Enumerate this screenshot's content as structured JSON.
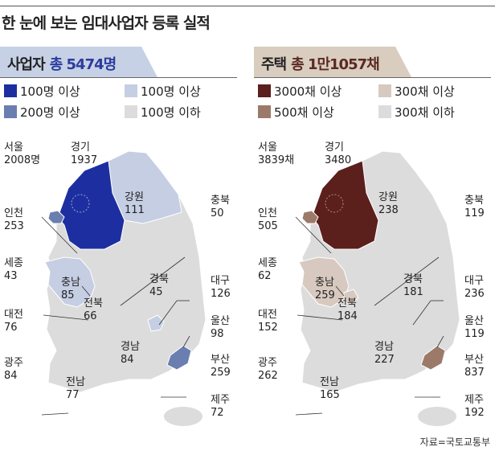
{
  "title": "한 눈에 보는 임대사업자 등록 실적",
  "source": "자료=국토교통부",
  "colors": {
    "left_header_bg": "#c7d1e5",
    "left_header_accent": "#2b3c9e",
    "right_header_bg": "#d9cdbf",
    "right_header_accent": "#5a2a22",
    "left_dark": "#1d2fa0",
    "left_mid": "#6a7fb0",
    "left_light": "#c5cee3",
    "base_gray": "#dcdcdc",
    "right_dark": "#5b1f1c",
    "right_mid": "#9c7a69",
    "right_light": "#d8c9c0"
  },
  "left": {
    "label": "사업자",
    "total": "총 5474명",
    "legend": [
      {
        "text": "100명 이상",
        "tier": "dark"
      },
      {
        "text": "100명 이상",
        "tier": "light"
      },
      {
        "text": "200명 이상",
        "tier": "mid"
      },
      {
        "text": "100명 이하",
        "tier": "gray"
      }
    ],
    "regions": [
      {
        "name": "서울",
        "value": "2008명"
      },
      {
        "name": "경기",
        "value": "1937"
      },
      {
        "name": "강원",
        "value": "111"
      },
      {
        "name": "충북",
        "value": "50"
      },
      {
        "name": "인천",
        "value": "253"
      },
      {
        "name": "세종",
        "value": "43"
      },
      {
        "name": "충남",
        "value": "85"
      },
      {
        "name": "경북",
        "value": "45"
      },
      {
        "name": "대구",
        "value": "126"
      },
      {
        "name": "대전",
        "value": "76"
      },
      {
        "name": "전북",
        "value": "66"
      },
      {
        "name": "울산",
        "value": "98"
      },
      {
        "name": "광주",
        "value": "84"
      },
      {
        "name": "경남",
        "value": "84"
      },
      {
        "name": "부산",
        "value": "259"
      },
      {
        "name": "전남",
        "value": "77"
      },
      {
        "name": "제주",
        "value": "72"
      }
    ]
  },
  "right": {
    "label": "주택",
    "total": "총 1만1057채",
    "legend": [
      {
        "text": "3000채 이상",
        "tier": "dark"
      },
      {
        "text": "300채 이상",
        "tier": "light"
      },
      {
        "text": "500채 이상",
        "tier": "mid"
      },
      {
        "text": "300채 이하",
        "tier": "gray"
      }
    ],
    "regions": [
      {
        "name": "서울",
        "value": "3839채"
      },
      {
        "name": "경기",
        "value": "3480"
      },
      {
        "name": "강원",
        "value": "238"
      },
      {
        "name": "충북",
        "value": "119"
      },
      {
        "name": "인천",
        "value": "505"
      },
      {
        "name": "세종",
        "value": "62"
      },
      {
        "name": "충남",
        "value": "259"
      },
      {
        "name": "경북",
        "value": "181"
      },
      {
        "name": "대구",
        "value": "236"
      },
      {
        "name": "대전",
        "value": "152"
      },
      {
        "name": "전북",
        "value": "184"
      },
      {
        "name": "울산",
        "value": "119"
      },
      {
        "name": "광주",
        "value": "262"
      },
      {
        "name": "경남",
        "value": "227"
      },
      {
        "name": "부산",
        "value": "837"
      },
      {
        "name": "전남",
        "value": "165"
      },
      {
        "name": "제주",
        "value": "192"
      }
    ]
  }
}
